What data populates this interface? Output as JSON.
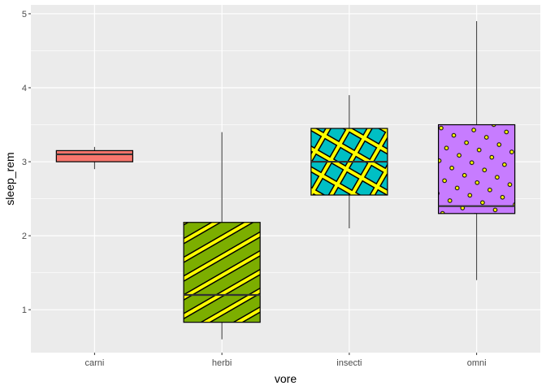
{
  "chart_data": {
    "type": "boxplot",
    "title": "",
    "xlabel": "vore",
    "ylabel": "sleep_rem",
    "ylim": [
      0.42,
      5.12
    ],
    "yticks": [
      1,
      2,
      3,
      4,
      5
    ],
    "categories": [
      "carni",
      "herbi",
      "insecti",
      "omni"
    ],
    "grid": true,
    "legend": "none",
    "boxes": [
      {
        "category": "carni",
        "whisker_low": 2.9,
        "q1": 3.0,
        "median": 3.1,
        "q3": 3.15,
        "whisker_high": 3.2,
        "fill": "#F8766D",
        "pattern": "none"
      },
      {
        "category": "herbi",
        "whisker_low": 0.6,
        "q1": 0.83,
        "median": 1.2,
        "q3": 2.18,
        "whisker_high": 3.4,
        "fill": "#7CAE00",
        "pattern": "stripe"
      },
      {
        "category": "insecti",
        "whisker_low": 2.1,
        "q1": 2.55,
        "median": 3.0,
        "q3": 3.45,
        "whisker_high": 3.9,
        "fill": "#00BFC4",
        "pattern": "crosshatch"
      },
      {
        "category": "omni",
        "whisker_low": 1.4,
        "q1": 2.3,
        "median": 2.4,
        "q3": 3.5,
        "whisker_high": 4.9,
        "fill": "#C77CFF",
        "pattern": "circle"
      }
    ],
    "pattern_fill": "#FFFF00",
    "panel_background": "#EBEBEB",
    "gridline_color": "#FFFFFF"
  }
}
